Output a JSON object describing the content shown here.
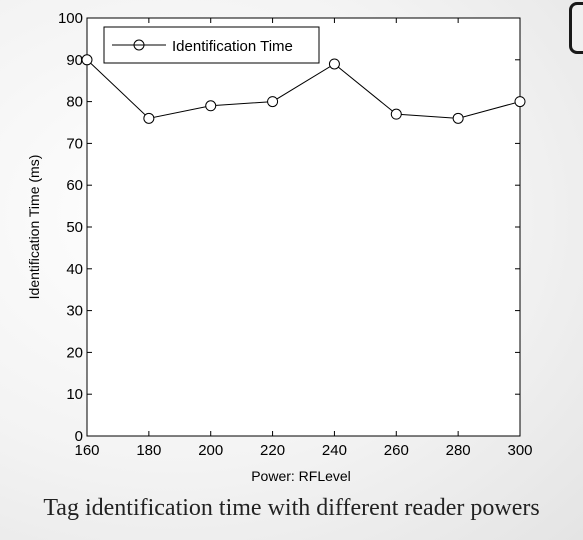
{
  "caption": "Tag identification time with different reader powers",
  "chart_data": {
    "type": "line",
    "title": "",
    "xlabel": "Power: RFLevel",
    "ylabel": "Identification Time (ms)",
    "x": [
      160,
      180,
      200,
      220,
      240,
      260,
      280,
      300
    ],
    "series": [
      {
        "name": "Identification Time",
        "values": [
          90,
          76,
          79,
          80,
          89,
          77,
          76,
          80
        ],
        "marker": "circle-open",
        "color": "#000000"
      }
    ],
    "xlim": [
      160,
      300
    ],
    "ylim": [
      0,
      100
    ],
    "xticks": [
      "160",
      "180",
      "200",
      "220",
      "240",
      "260",
      "280",
      "300"
    ],
    "yticks": [
      "0",
      "10",
      "20",
      "30",
      "40",
      "50",
      "60",
      "70",
      "80",
      "90",
      "100"
    ],
    "grid": false,
    "legend": "top-left"
  }
}
